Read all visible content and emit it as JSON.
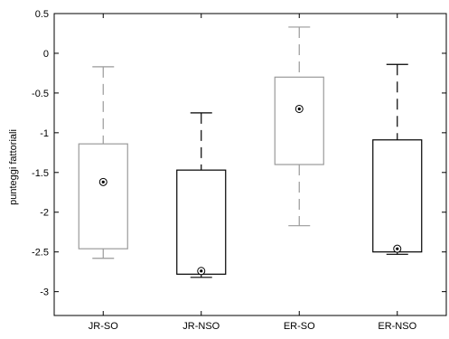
{
  "chart_data": {
    "type": "box",
    "ylabel": "punteggi fattoriali",
    "xlabel": "",
    "title": "",
    "ylim": [
      -3.3,
      0.5
    ],
    "yticks": [
      0.5,
      0,
      -0.5,
      -1,
      -1.5,
      -2,
      -2.5,
      -3
    ],
    "ytick_labels": [
      "0.5",
      "0",
      "-0.5",
      "-1",
      "-1.5",
      "-2",
      "-2.5",
      "-3"
    ],
    "categories": [
      "JR-SO",
      "JR-NSO",
      "ER-SO",
      "ER-NSO"
    ],
    "boxes": [
      {
        "label": "JR-SO",
        "whisker_low": -2.58,
        "q1": -2.46,
        "q3": -1.14,
        "whisker_high": -0.17,
        "marker": -1.62,
        "color": "#9a9a9a"
      },
      {
        "label": "JR-NSO",
        "whisker_low": -2.82,
        "q1": -2.78,
        "q3": -1.47,
        "whisker_high": -0.75,
        "marker": -2.74,
        "color": "#000000"
      },
      {
        "label": "ER-SO",
        "whisker_low": -2.17,
        "q1": -1.4,
        "q3": -0.3,
        "whisker_high": 0.33,
        "marker": -0.7,
        "color": "#9a9a9a"
      },
      {
        "label": "ER-NSO",
        "whisker_low": -2.53,
        "q1": -2.5,
        "q3": -1.09,
        "whisker_high": -0.14,
        "marker": -2.46,
        "color": "#000000"
      }
    ],
    "grid": false,
    "legend": "none"
  }
}
